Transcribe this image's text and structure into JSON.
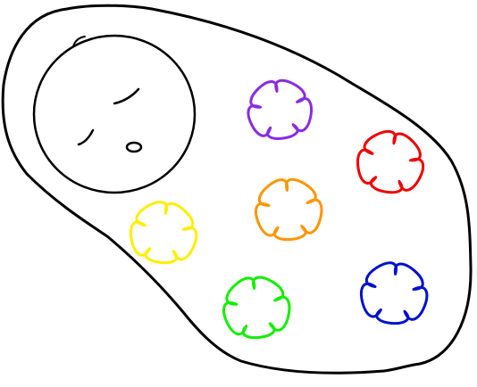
{
  "colors": {
    "outline": "#000000",
    "background": "#ffffff"
  },
  "flowers": [
    {
      "name": "purple",
      "color": "#8a2be2"
    },
    {
      "name": "red",
      "color": "#ee0000"
    },
    {
      "name": "orange",
      "color": "#ff9500"
    },
    {
      "name": "yellow",
      "color": "#ffee00"
    },
    {
      "name": "green",
      "color": "#11ee00"
    },
    {
      "name": "blue",
      "color": "#0011cc"
    }
  ]
}
